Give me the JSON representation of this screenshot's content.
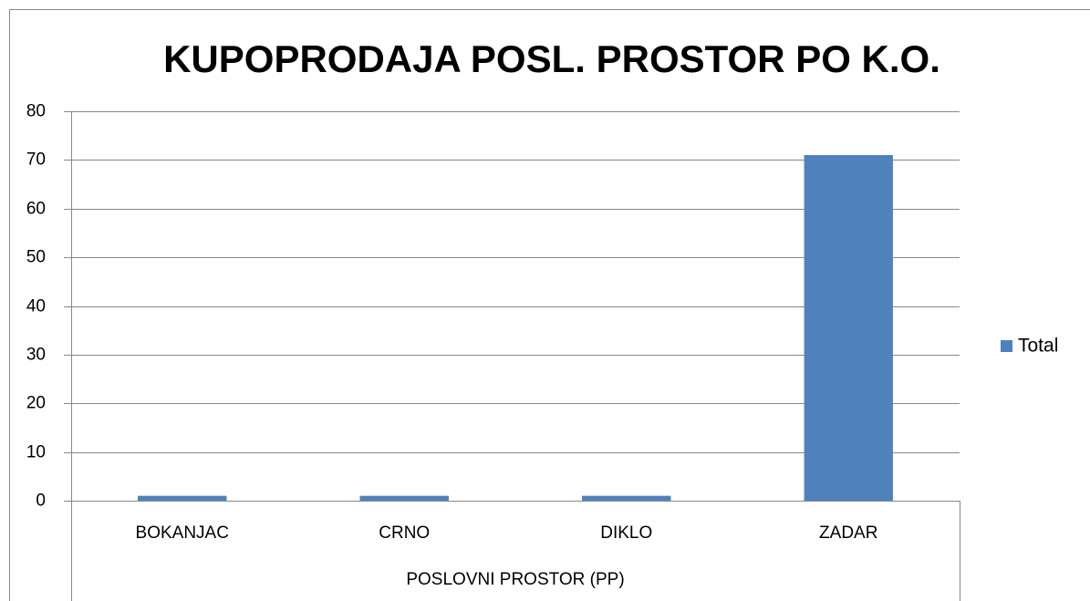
{
  "chart_data": {
    "type": "bar",
    "title": "KUPOPRODAJA POSL. PROSTOR PO K.O.",
    "x_label": "POSLOVNI PROSTOR (PP)",
    "categories": [
      "BOKANJAC",
      "CRNO",
      "DIKLO",
      "ZADAR"
    ],
    "series": [
      {
        "name": "Total",
        "color": "#4f81bd",
        "values": [
          1,
          1,
          1,
          71
        ]
      }
    ],
    "ylim": [
      0,
      80
    ],
    "yticks": [
      0,
      10,
      20,
      30,
      40,
      50,
      60,
      70,
      80
    ],
    "grid": true,
    "legend": "right"
  }
}
